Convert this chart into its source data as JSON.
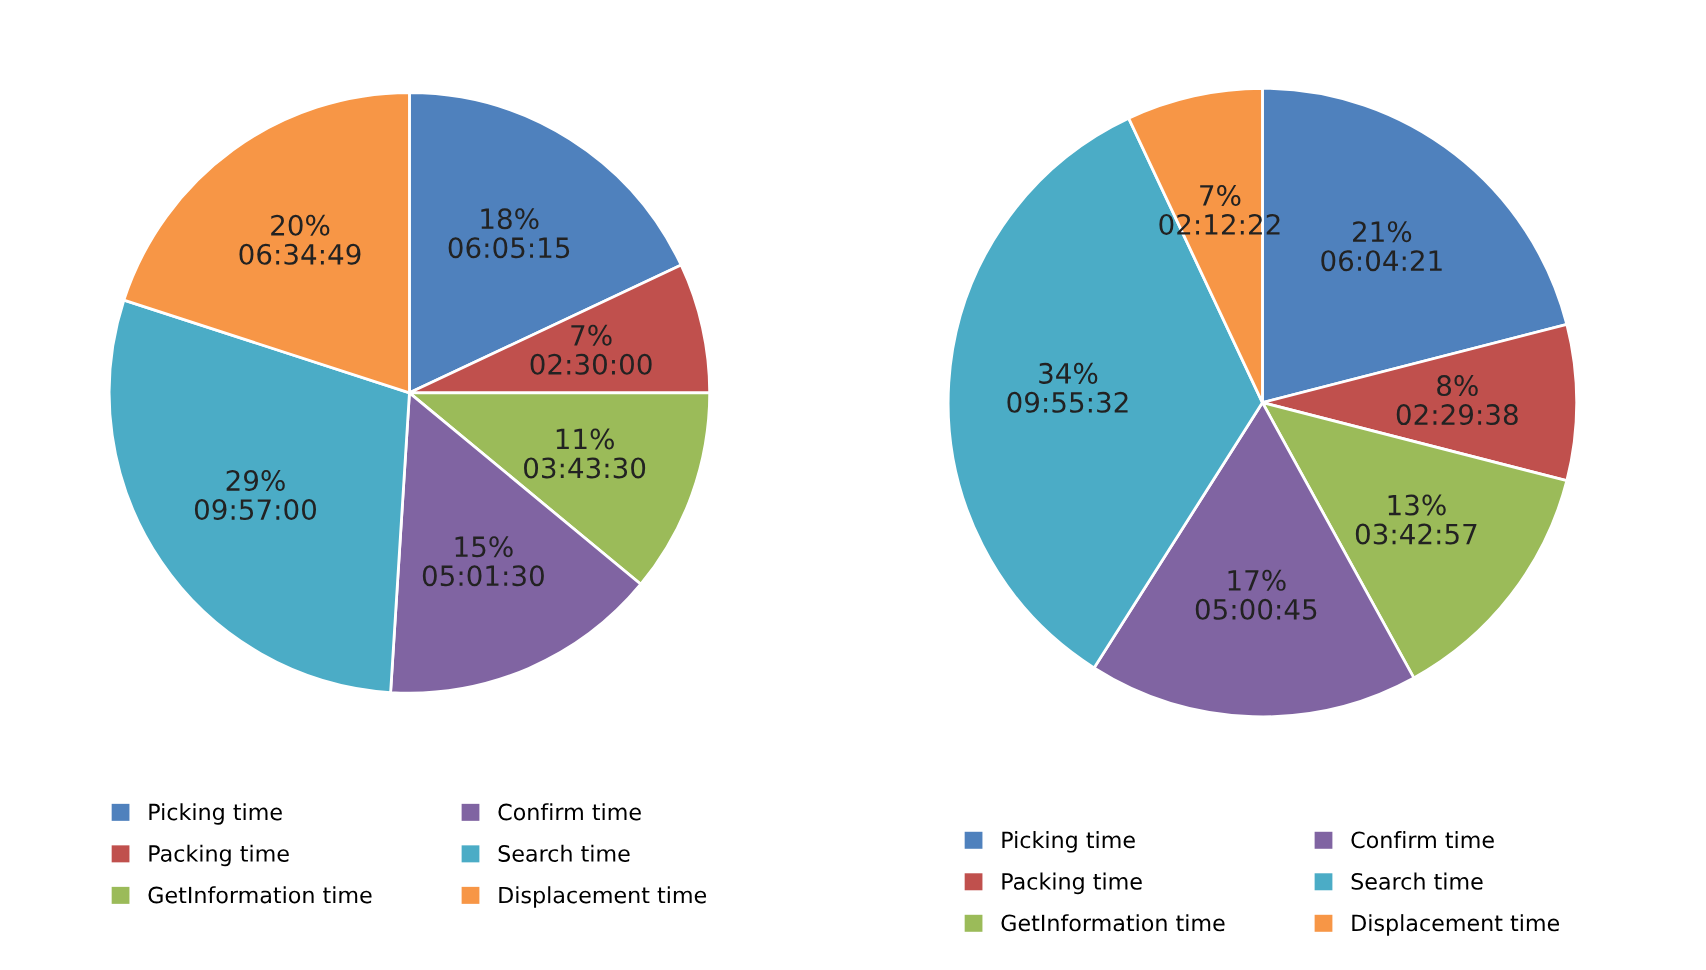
{
  "chart_data": [
    {
      "type": "pie",
      "categories": [
        "Picking time",
        "Packing time",
        "GetInformation time",
        "Confirm time",
        "Search time",
        "Displacement time"
      ],
      "values": [
        18,
        7,
        11,
        15,
        29,
        20
      ],
      "value_labels": [
        "18%\n06:05:15",
        "7%\n02:30:00",
        "11%\n03:43:30",
        "15%\n05:01:30",
        "29%\n09:57:00",
        "20%\n06:34:49"
      ],
      "colors": [
        "#4f81bd",
        "#c0504d",
        "#9bbb59",
        "#8064a2",
        "#4bacc6",
        "#f79646"
      ],
      "legend": "bottom"
    },
    {
      "type": "pie",
      "categories": [
        "Picking time",
        "Packing time",
        "GetInformation time",
        "Confirm time",
        "Search time",
        "Displacement time"
      ],
      "values": [
        21,
        8,
        13,
        17,
        34,
        7
      ],
      "value_labels": [
        "21%\n06:04:21",
        "8%\n02:29:38",
        "13%\n03:42:57",
        "17%\n05:00:45",
        "34%\n09:55:32",
        "7%\n02:12:22"
      ],
      "colors": [
        "#4f81bd",
        "#c0504d",
        "#9bbb59",
        "#8064a2",
        "#4bacc6",
        "#f79646"
      ],
      "legend": "bottom"
    }
  ]
}
